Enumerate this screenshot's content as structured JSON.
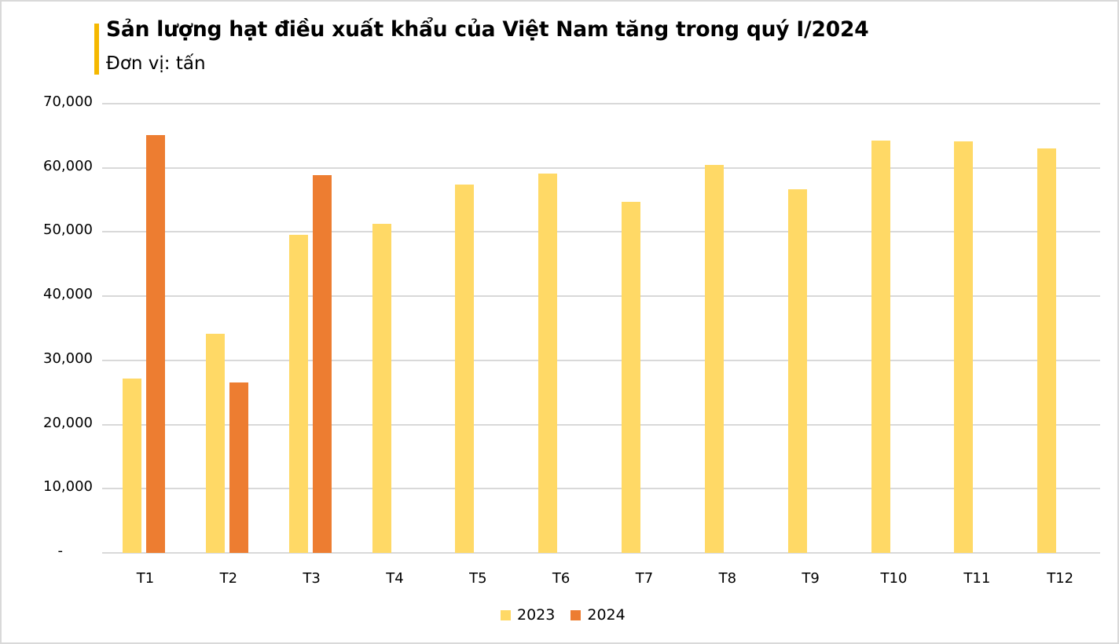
{
  "header": {
    "title": "Sản lượng hạt điều xuất khẩu của Việt Nam tăng trong quý I/2024",
    "subtitle": "Đơn vị: tấn",
    "accent_color": "#F5B800"
  },
  "colors": {
    "2023": "#FFD966",
    "2024": "#ED7D31",
    "grid": "#D9D9D9"
  },
  "axis": {
    "y_ticks": [
      "-",
      "10,000",
      "20,000",
      "30,000",
      "40,000",
      "50,000",
      "60,000",
      "70,000"
    ],
    "x_ticks": [
      "T1",
      "T2",
      "T3",
      "T4",
      "T5",
      "T6",
      "T7",
      "T8",
      "T9",
      "T10",
      "T11",
      "T12"
    ]
  },
  "legend": [
    {
      "label": "2023",
      "color": "#FFD966"
    },
    {
      "label": "2024",
      "color": "#ED7D31"
    }
  ],
  "chart_data": {
    "type": "bar",
    "title": "Sản lượng hạt điều xuất khẩu của Việt Nam tăng trong quý I/2024",
    "subtitle": "Đơn vị: tấn",
    "xlabel": "",
    "ylabel": "",
    "categories": [
      "T1",
      "T2",
      "T3",
      "T4",
      "T5",
      "T6",
      "T7",
      "T8",
      "T9",
      "T10",
      "T11",
      "T12"
    ],
    "series": [
      {
        "name": "2023",
        "color": "#FFD966",
        "values": [
          27200,
          34200,
          49600,
          51300,
          57400,
          59100,
          54700,
          60500,
          56700,
          64300,
          64100,
          63000
        ]
      },
      {
        "name": "2024",
        "color": "#ED7D31",
        "values": [
          65100,
          26500,
          58900,
          null,
          null,
          null,
          null,
          null,
          null,
          null,
          null,
          null
        ]
      }
    ],
    "ylim": [
      0,
      70000
    ],
    "y_tick_step": 10000,
    "grid": true,
    "legend_position": "bottom"
  }
}
